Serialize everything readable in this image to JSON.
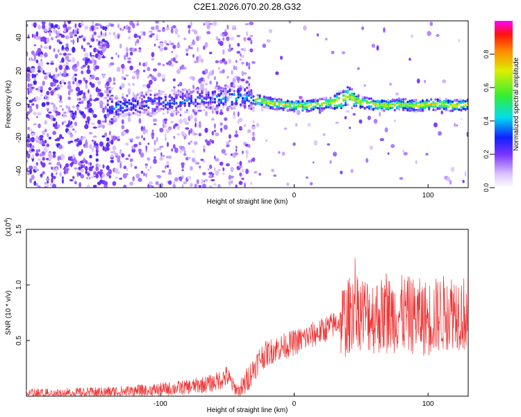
{
  "title": "C2E1.2026.070.20.28.G32",
  "chart_data": [
    {
      "type": "heatmap",
      "xlabel": "Height of straight line (km)",
      "ylabel": "Frequency (Hz)",
      "xlim": [
        -200,
        130
      ],
      "ylim": [
        -50,
        50
      ],
      "xticks": [
        -100,
        0,
        100
      ],
      "yticks": [
        -40,
        -20,
        0,
        20,
        40
      ],
      "colorbar": {
        "label": "Normalized spectral amplitude",
        "range": [
          0,
          1
        ],
        "ticks": [
          "0.0",
          "0.2",
          "0.4",
          "0.6",
          "0.8"
        ]
      },
      "ridge": {
        "x": [
          -135,
          -120,
          -100,
          -80,
          -65,
          -50,
          -40,
          -30,
          -20,
          -10,
          0,
          10,
          20,
          28,
          35,
          40,
          50,
          60,
          70,
          80,
          90,
          100,
          110,
          120,
          130
        ],
        "y": [
          -2,
          0,
          1,
          2,
          3,
          4,
          5,
          3,
          1,
          0,
          -1,
          -1,
          0,
          1,
          2,
          5,
          1,
          0,
          -1,
          0,
          -1,
          0,
          0,
          -1,
          0
        ]
      }
    },
    {
      "type": "line",
      "xlabel": "Height of straight line (km)",
      "ylabel": "SNR (10 * v/v)",
      "scale_label": "(x10",
      "scale_exp": "4",
      "xlim": [
        -200,
        130
      ],
      "ylim": [
        0,
        1.5
      ],
      "xticks": [
        -100,
        0,
        100
      ],
      "yticks": [
        "0.5",
        "1.0",
        "1.5"
      ],
      "color": "#ee3333",
      "envelope": {
        "x": [
          -200,
          -150,
          -110,
          -80,
          -60,
          -50,
          -45,
          -40,
          -35,
          -30,
          -25,
          -15,
          0,
          20,
          35,
          40,
          45,
          50,
          60,
          80,
          100,
          120,
          130
        ],
        "y": [
          0.02,
          0.03,
          0.05,
          0.08,
          0.12,
          0.18,
          0.08,
          0.04,
          0.15,
          0.25,
          0.35,
          0.42,
          0.48,
          0.58,
          0.68,
          0.7,
          0.82,
          0.75,
          0.72,
          0.74,
          0.7,
          0.78,
          0.72
        ]
      }
    }
  ]
}
